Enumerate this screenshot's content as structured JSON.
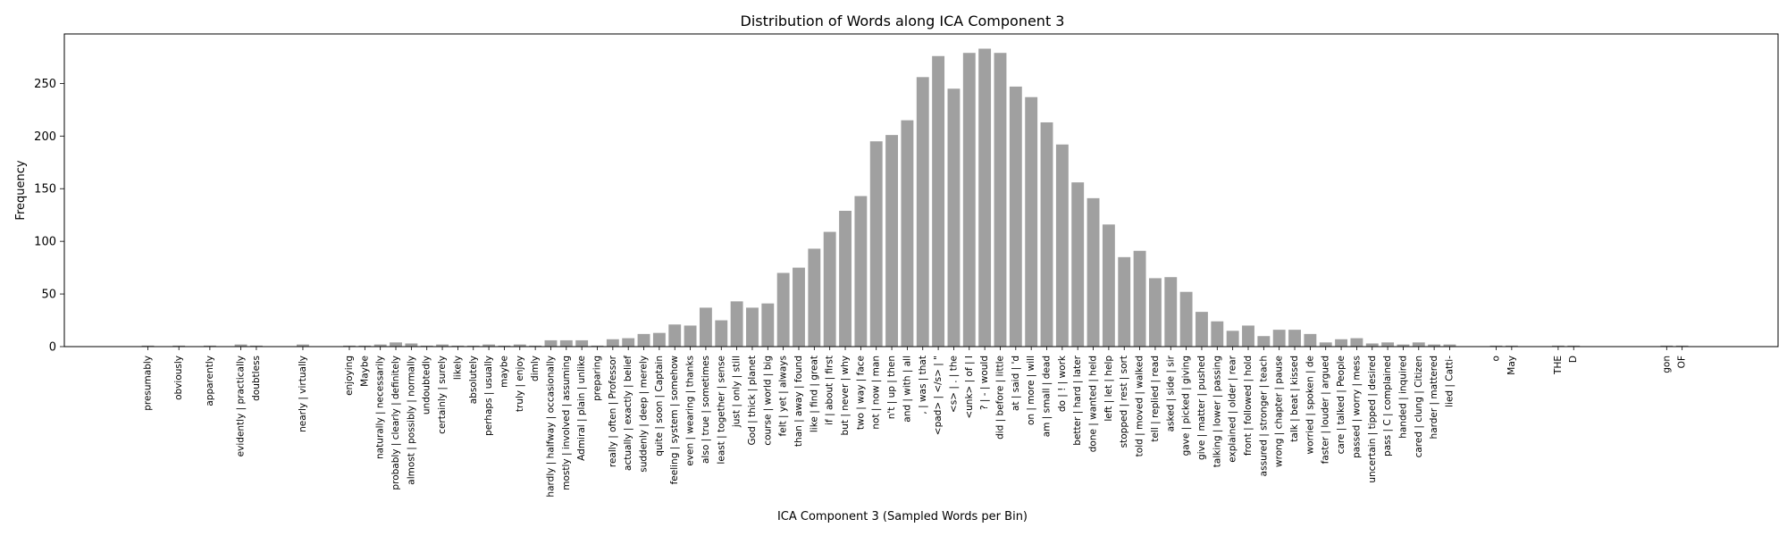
{
  "chart_data": {
    "type": "bar",
    "title": "Distribution of Words along ICA Component 3",
    "xlabel": "ICA Component 3 (Sampled Words per Bin)",
    "ylabel": "Frequency",
    "ylim": [
      0,
      297
    ],
    "yticks": [
      0,
      50,
      100,
      150,
      200,
      250
    ],
    "bar_color": "#a0a0a0",
    "grid": false,
    "legend": "none",
    "categories": [
      "presumably",
      "",
      "obviously",
      "",
      "apparently",
      "",
      "evidently | practically",
      "doubtless",
      "",
      "",
      "nearly | virtually",
      "",
      "",
      "enjoying",
      "Maybe",
      "naturally | necessarily",
      "probably | clearly | definitely",
      "almost | possibly | normally",
      "undoubtedly",
      "certainly | surely",
      "likely",
      "absolutely",
      "perhaps | usually",
      "maybe",
      "truly | enjoy",
      "dimly",
      "hardly | halfway | occasionally",
      "mostly | involved | assuming",
      "Admiral | plain | unlike",
      "preparing",
      "really | often | Professor",
      "actually | exactly | belief",
      "suddenly | deep | merely",
      "quite | soon | Captain",
      "feeling | system | somehow",
      "even | wearing | thanks",
      "also | true | sometimes",
      "least | together | sense",
      "just | only | still",
      "God | thick | planet",
      "course | world | big",
      "felt | yet | always",
      "than | away | found",
      "like | find | great",
      "if | about | first",
      "but | never | why",
      "two | way | face",
      "not | now | man",
      "n't | up | then",
      "and | with | all",
      ", | was | that",
      "<pad> | </s> | \"",
      "<s> | . | the",
      "<unk> | of | I",
      "? | - | would",
      "did | before | little",
      "at | said | 'd",
      "on | more | will",
      "am | small | dead",
      "do | ! | work",
      "better | hard | later",
      "done | wanted | held",
      "left | let | help",
      "stopped | rest | sort",
      "told | moved | walked",
      "tell | replied | read",
      "asked | side | sir",
      "gave | picked | giving",
      "give | matter | pushed",
      "talking | lower | passing",
      "explained | older | rear",
      "front | followed | hold",
      "assured | stronger | teach",
      "wrong | chapter | pause",
      "talk | beat | kissed",
      "worried | spoken | de",
      "faster | louder | argued",
      "care | talked | People",
      "passed | worry | mess",
      "uncertain | tipped | desired",
      "pass | C | complained",
      "handed | inquired",
      "cared | clung | Citizen",
      "harder | mattered",
      "lied | Catti-",
      "",
      "",
      "o",
      "May",
      "",
      "",
      "THE",
      "D",
      "",
      "",
      "",
      "",
      "",
      "gon",
      "OF",
      ""
    ],
    "values": [
      1,
      0,
      1,
      0,
      1,
      0,
      2,
      1,
      0,
      0,
      2,
      0,
      0,
      1,
      1,
      2,
      4,
      3,
      1,
      2,
      1,
      1,
      2,
      1,
      2,
      1,
      6,
      6,
      6,
      1,
      7,
      8,
      12,
      13,
      21,
      20,
      37,
      25,
      43,
      37,
      41,
      70,
      75,
      93,
      109,
      129,
      143,
      195,
      201,
      215,
      256,
      276,
      245,
      279,
      283,
      279,
      247,
      237,
      213,
      192,
      156,
      141,
      116,
      85,
      91,
      65,
      66,
      52,
      33,
      24,
      15,
      20,
      10,
      16,
      16,
      12,
      4,
      7,
      8,
      3,
      4,
      2,
      4,
      2,
      2,
      0,
      0,
      1,
      1,
      0,
      0,
      1,
      1,
      0,
      0,
      0,
      0,
      0,
      1,
      1,
      0
    ]
  }
}
